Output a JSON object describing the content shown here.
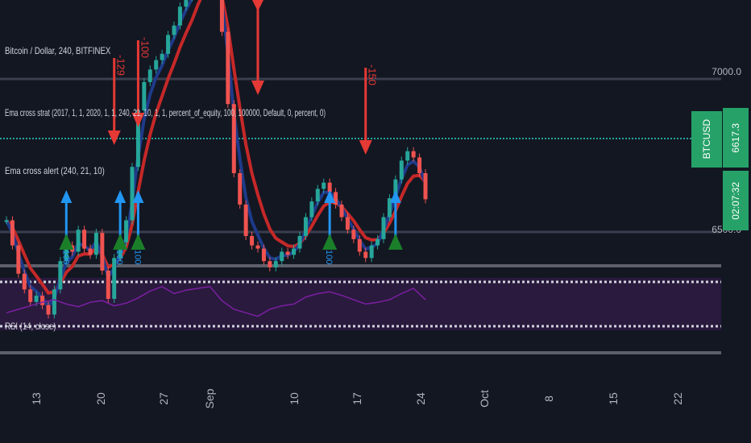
{
  "legend": {
    "main": "Bitcoin / Dollar, 240, BITFINEX",
    "strategy": "Ema cross strat (2017, 1, 1, 2020, 1, 1, 240, 21, 10, 1, 1, percent_of_equity, 100, 100000, Default, 0, percent, 0)",
    "alert": "Ema cross alert (240, 21, 10)",
    "rsi": "RSI (14, close)"
  },
  "price_axis": {
    "levels": [
      "7000.0",
      "6500.0"
    ]
  },
  "badges": {
    "symbol": "BTCUSD",
    "price": "6617.3",
    "countdown": "02:07:32"
  },
  "signals": {
    "short_labels": [
      "-129",
      "-100",
      "-150"
    ],
    "long_labels": [
      "100",
      "100",
      "100",
      "100"
    ]
  },
  "colors": {
    "background": "#131722",
    "price_line": "#26a69a",
    "ema_fast": "#1e3a8a",
    "ema_slow": "#c62828",
    "rsi_line": "#7b1fa2",
    "rsi_band": "#2a1a3e",
    "sell": "#e53935",
    "buy": "#2196f3",
    "buy_green": "#1b7f2a"
  },
  "chart_data": {
    "type": "line",
    "title": "Bitcoin / Dollar, 240, BITFINEX",
    "x_ticks": [
      "13",
      "20",
      "27",
      "Sep",
      "10",
      "17",
      "24",
      "Oct",
      "8",
      "15",
      "22"
    ],
    "y_ticks": [
      "7000.0",
      "6500.0"
    ],
    "last_price": 6617.3,
    "series": [
      {
        "name": "Bitcoin / Dollar, 240, BITFINEX",
        "x": [
          0,
          1,
          2,
          3,
          4,
          5,
          6,
          7,
          8,
          9,
          10,
          11,
          12,
          13,
          14,
          15,
          16,
          17,
          18,
          19,
          20,
          21,
          22,
          23,
          24,
          25,
          26,
          27,
          28,
          29,
          30,
          31,
          32,
          33,
          34,
          35,
          36,
          37,
          38,
          39,
          40,
          41,
          42,
          43,
          44,
          45,
          46,
          47,
          48,
          49,
          50,
          51,
          52,
          53,
          54,
          55,
          56,
          57,
          58,
          59,
          60,
          61,
          62,
          63,
          64,
          65,
          66,
          67,
          68,
          69,
          70
        ],
        "values": [
          6550,
          6470,
          6380,
          6330,
          6290,
          6310,
          6280,
          6250,
          6330,
          6420,
          6470,
          6450,
          6520,
          6460,
          6440,
          6510,
          6390,
          6300,
          6430,
          6480,
          6550,
          6720,
          6900,
          6990,
          7030,
          7060,
          7080,
          7140,
          7170,
          7230,
          7260,
          7290,
          7360,
          7380,
          7390,
          7300,
          7150,
          6920,
          6700,
          6600,
          6500,
          6470,
          6460,
          6420,
          6400,
          6420,
          6450,
          6440,
          6460,
          6500,
          6560,
          6610,
          6650,
          6670,
          6640,
          6600,
          6560,
          6520,
          6490,
          6450,
          6430,
          6470,
          6490,
          6560,
          6620,
          6680,
          6740,
          6770,
          6750,
          6700,
          6617
        ]
      },
      {
        "name": "RSI (14, close)",
        "x": [
          0,
          2,
          4,
          6,
          8,
          10,
          12,
          14,
          16,
          18,
          20,
          22,
          24,
          26,
          28,
          30,
          32,
          34,
          36,
          38,
          40,
          42,
          44,
          46,
          48,
          50,
          52,
          54,
          56,
          58,
          60,
          62,
          64,
          66,
          68,
          70
        ],
        "values": [
          40,
          44,
          48,
          52,
          55,
          50,
          47,
          52,
          54,
          48,
          51,
          57,
          65,
          70,
          62,
          66,
          68,
          70,
          54,
          44,
          40,
          36,
          44,
          48,
          50,
          58,
          62,
          64,
          60,
          55,
          50,
          52,
          55,
          62,
          68,
          55
        ]
      }
    ]
  }
}
